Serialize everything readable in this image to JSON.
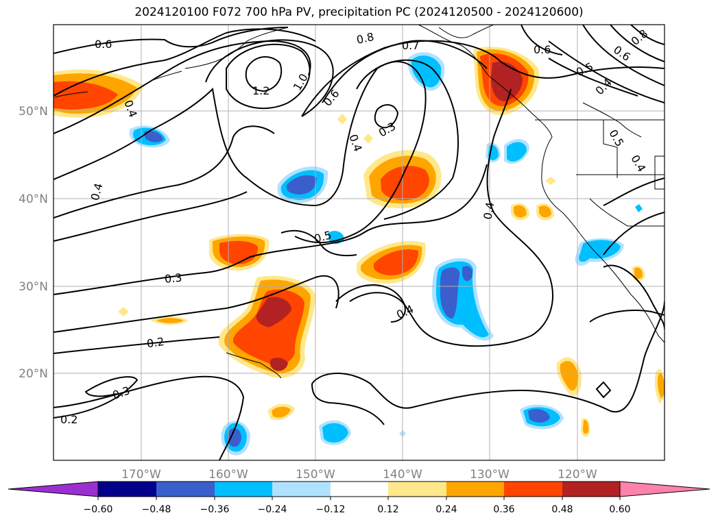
{
  "title": "2024120100 F072 700 hPa PV, precipitation PC (2024120500 - 2024120600)",
  "lat_labels": [
    "50°N",
    "40°N",
    "30°N",
    "20°N"
  ],
  "lon_labels": [
    "170°W",
    "160°W",
    "150°W",
    "140°W",
    "130°W",
    "120°W"
  ],
  "contour_labels": [
    "0.6",
    "1.2",
    "1.0",
    "0.8",
    "0.7",
    "0.6",
    "0.6",
    "0.5",
    "0.4",
    "0.8",
    "0.6",
    "0.4",
    "0.3",
    "0.4",
    "0.4",
    "0.5",
    "0.4",
    "0.4",
    "0.5",
    "0.3",
    "0.2",
    "0.4",
    "0.3",
    "0.2"
  ],
  "colorbar": {
    "tick_labels": [
      "−0.60",
      "−0.48",
      "−0.36",
      "−0.24",
      "−0.12",
      "0.12",
      "0.24",
      "0.36",
      "0.48",
      "0.60"
    ],
    "colors": [
      "#9b30d0",
      "#00008b",
      "#3a5fcd",
      "#00bfff",
      "#b0e2ff",
      "#ffffff",
      "#ffe88a",
      "#ffa500",
      "#ff4500",
      "#b22222",
      "#ff82ab"
    ]
  },
  "shading_colors": {
    "pos_1": "#ffe88a",
    "pos_2": "#ffa500",
    "pos_3": "#ff4500",
    "pos_4": "#b22222",
    "neg_1": "#b0e2ff",
    "neg_2": "#00bfff",
    "neg_3": "#3a5fcd"
  }
}
